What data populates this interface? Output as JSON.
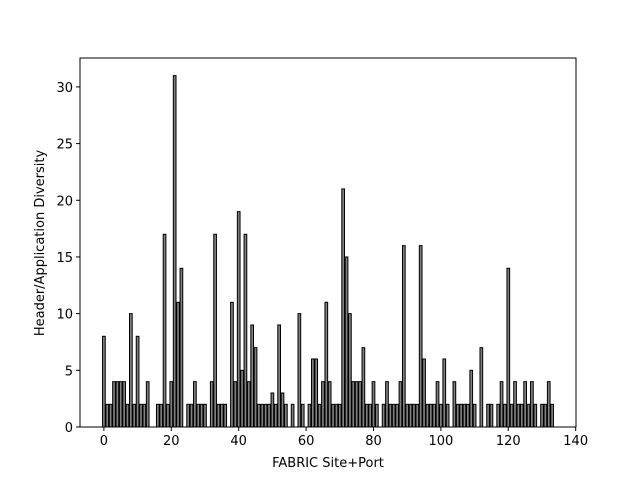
{
  "chart_data": {
    "type": "bar",
    "xlabel": "FABRIC Site+Port",
    "ylabel": "Header/Application Diversity",
    "color": "#808080",
    "edgecolor": "#000000",
    "x": [
      0,
      1,
      2,
      3,
      4,
      5,
      6,
      7,
      8,
      9,
      10,
      11,
      12,
      13,
      14,
      15,
      16,
      17,
      18,
      19,
      20,
      21,
      22,
      23,
      24,
      25,
      26,
      27,
      28,
      29,
      30,
      31,
      32,
      33,
      34,
      35,
      36,
      37,
      38,
      39,
      40,
      41,
      42,
      43,
      44,
      45,
      46,
      47,
      48,
      49,
      50,
      51,
      52,
      53,
      54,
      55,
      56,
      57,
      58,
      59,
      60,
      61,
      62,
      63,
      64,
      65,
      66,
      67,
      68,
      69,
      70,
      71,
      72,
      73,
      74,
      75,
      76,
      77,
      78,
      79,
      80,
      81,
      82,
      83,
      84,
      85,
      86,
      87,
      88,
      89,
      90,
      91,
      92,
      93,
      94,
      95,
      96,
      97,
      98,
      99,
      100,
      101,
      102,
      103,
      104,
      105,
      106,
      107,
      108,
      109,
      110,
      111,
      112,
      113,
      114,
      115,
      116,
      117,
      118,
      119,
      120,
      121,
      122,
      123,
      124,
      125,
      126,
      127,
      128,
      129,
      130,
      131,
      132,
      133
    ],
    "values": [
      8,
      2,
      2,
      4,
      4,
      4,
      4,
      2,
      10,
      2,
      8,
      2,
      2,
      4,
      0,
      0,
      2,
      2,
      17,
      2,
      4,
      31,
      11,
      14,
      0,
      2,
      2,
      4,
      2,
      2,
      2,
      0,
      4,
      17,
      2,
      2,
      2,
      0,
      11,
      4,
      19,
      5,
      17,
      4,
      9,
      7,
      2,
      2,
      2,
      2,
      3,
      2,
      9,
      3,
      2,
      0,
      2,
      0,
      10,
      2,
      0,
      2,
      6,
      6,
      2,
      4,
      11,
      4,
      2,
      2,
      2,
      21,
      15,
      10,
      4,
      4,
      4,
      7,
      2,
      2,
      4,
      2,
      0,
      2,
      4,
      2,
      2,
      2,
      4,
      16,
      2,
      2,
      2,
      2,
      16,
      6,
      2,
      2,
      2,
      4,
      2,
      6,
      2,
      0,
      4,
      2,
      2,
      2,
      2,
      5,
      2,
      0,
      7,
      0,
      2,
      2,
      0,
      2,
      4,
      2,
      14,
      2,
      4,
      2,
      2,
      4,
      2,
      4,
      2,
      0,
      2,
      2,
      4,
      2
    ],
    "bar_width": 0.8,
    "xlim": [
      -7.09,
      140.09
    ],
    "xticks": [
      0,
      20,
      40,
      60,
      80,
      100,
      120,
      140
    ],
    "ylim": [
      0,
      32.55
    ],
    "yticks": [
      0,
      5,
      10,
      15,
      20,
      25,
      30
    ]
  }
}
